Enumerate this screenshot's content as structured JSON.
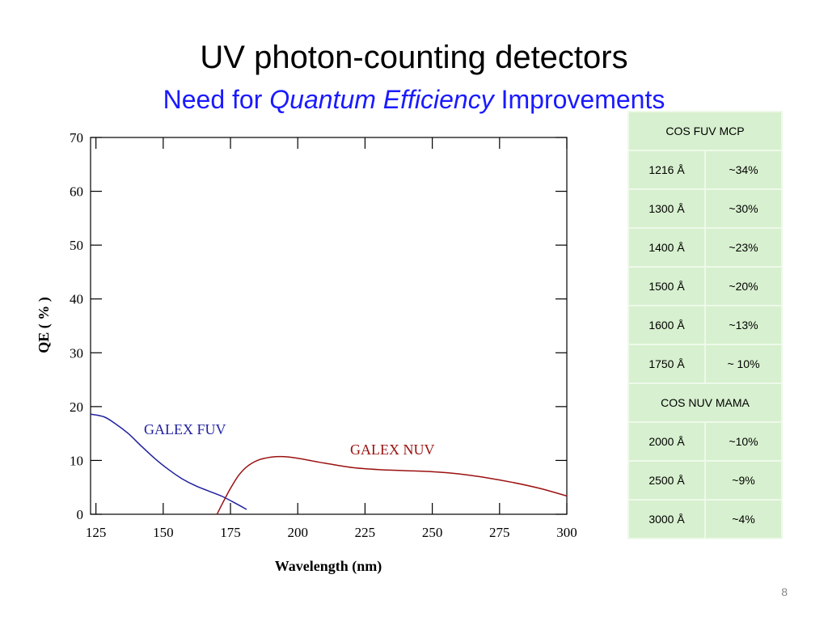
{
  "slide": {
    "title": "UV photon-counting detectors",
    "subtitle_pre": "Need for ",
    "subtitle_em": "Quantum Efficiency",
    "subtitle_post": " Improvements",
    "page_number": "8"
  },
  "colors": {
    "subtitle": "#1a1aff",
    "fuv": "#1f1fa0",
    "nuv": "#9b1111",
    "table_bg": "#d7f0cf"
  },
  "chart_data": {
    "type": "line",
    "xlabel": "Wavelength (nm)",
    "ylabel": "QE ( % )",
    "xlim": [
      123,
      300
    ],
    "ylim": [
      0,
      70
    ],
    "xticks": [
      125,
      150,
      175,
      200,
      225,
      250,
      275,
      300
    ],
    "yticks": [
      0,
      10,
      20,
      30,
      40,
      50,
      60,
      70
    ],
    "grid": false,
    "series": [
      {
        "name": "GALEX FUV",
        "color": "#1f1fa0",
        "x": [
          123,
          128,
          132,
          137,
          142,
          147,
          152,
          157,
          162,
          167,
          172,
          177,
          181
        ],
        "y": [
          18.6,
          18.1,
          16.9,
          15.0,
          12.6,
          10.3,
          8.3,
          6.6,
          5.3,
          4.3,
          3.3,
          2.0,
          0.9
        ]
      },
      {
        "name": "GALEX NUV",
        "color": "#9b1111",
        "x": [
          170,
          172,
          175,
          178,
          181,
          185,
          190,
          195,
          200,
          210,
          220,
          230,
          240,
          250,
          260,
          270,
          280,
          290,
          300
        ],
        "y": [
          0,
          2.0,
          4.8,
          7.2,
          8.8,
          10.0,
          10.6,
          10.7,
          10.4,
          9.5,
          8.7,
          8.3,
          8.1,
          7.9,
          7.5,
          6.8,
          5.9,
          4.8,
          3.4
        ]
      }
    ]
  },
  "table": {
    "header1": "COS FUV MCP",
    "fuv_rows": [
      {
        "wavelength": "1216 Å",
        "qe": "~34%"
      },
      {
        "wavelength": "1300 Å",
        "qe": "~30%"
      },
      {
        "wavelength": "1400 Å",
        "qe": "~23%"
      },
      {
        "wavelength": "1500 Å",
        "qe": "~20%"
      },
      {
        "wavelength": "1600 Å",
        "qe": "~13%"
      },
      {
        "wavelength": "1750 Å",
        "qe": "~ 10%"
      }
    ],
    "header2": "COS NUV MAMA",
    "nuv_rows": [
      {
        "wavelength": "2000 Å",
        "qe": "~10%"
      },
      {
        "wavelength": "2500 Å",
        "qe": "~9%"
      },
      {
        "wavelength": "3000 Å",
        "qe": "~4%"
      }
    ]
  }
}
